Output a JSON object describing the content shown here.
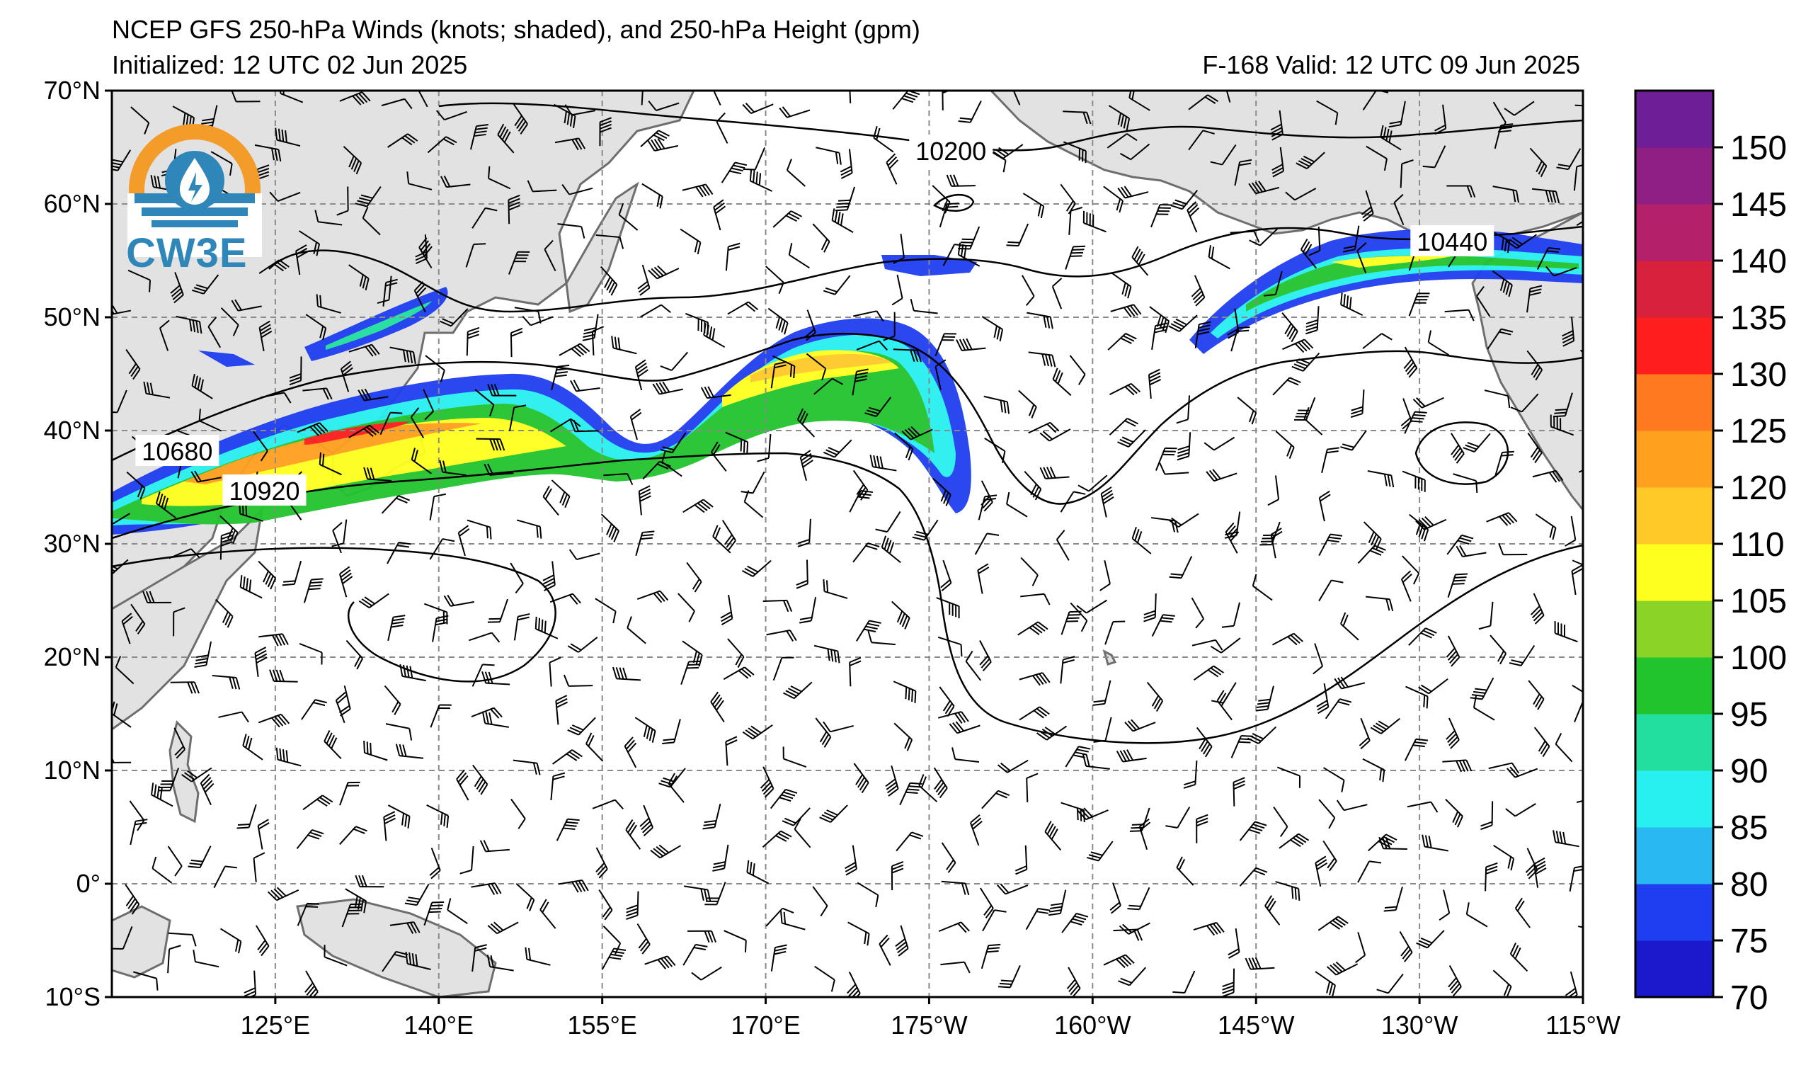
{
  "header": {
    "title": "NCEP GFS 250-hPa Winds (knots; shaded), and 250-hPa Height (gpm)",
    "initialized": "Initialized: 12 UTC 02 Jun 2025",
    "valid": "F-168  Valid: 12 UTC 09 Jun 2025"
  },
  "logo": {
    "text": "CW3E",
    "icon": "water-drop-bolt-icon"
  },
  "map": {
    "lat_labels": [
      "70°N",
      "60°N",
      "50°N",
      "40°N",
      "30°N",
      "20°N",
      "10°N",
      "0°",
      "10°S"
    ],
    "lon_labels": [
      "125°E",
      "140°E",
      "155°E",
      "170°E",
      "175°W",
      "160°W",
      "145°W",
      "130°W",
      "115°W"
    ],
    "lat_range": [
      -10,
      70
    ],
    "lon_range": [
      110,
      245
    ],
    "gridlines": true,
    "land_color": "#e2e2e2",
    "coast_color": "#6e6e6e"
  },
  "height_contours": {
    "labels": [
      {
        "text": "10200",
        "lon": 187,
        "lat": 64.5
      },
      {
        "text": "10440",
        "lon": 233,
        "lat": 56.5
      },
      {
        "text": "10680",
        "lon": 116,
        "lat": 38
      },
      {
        "text": "10920",
        "lon": 124,
        "lat": 34.5
      }
    ]
  },
  "colorbar": {
    "ticks": [
      "150",
      "145",
      "140",
      "135",
      "130",
      "125",
      "120",
      "110",
      "105",
      "100",
      "95",
      "90",
      "85",
      "80",
      "75",
      "70"
    ],
    "colors": [
      "#1a1acc",
      "#1f3ef0",
      "#2ab8f2",
      "#28f0f0",
      "#22dfa0",
      "#22c42e",
      "#8ad428",
      "#ffff1e",
      "#ffc928",
      "#ffa01e",
      "#ff7a1e",
      "#ff1e1e",
      "#d8213c",
      "#b4206a",
      "#8f1f82",
      "#6e1e96"
    ],
    "unit": "knots"
  }
}
